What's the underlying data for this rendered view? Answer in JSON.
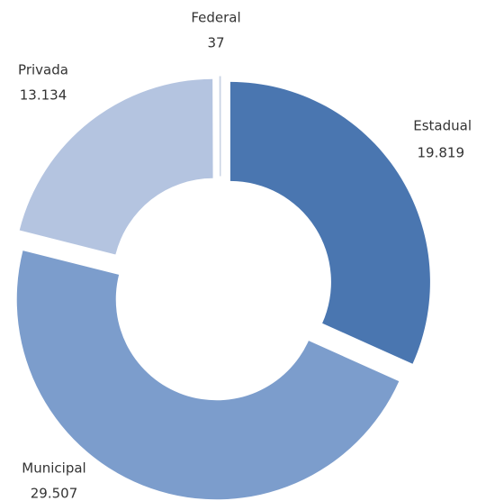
{
  "chart_data": {
    "type": "donut",
    "categories": [
      "Federal",
      "Estadual",
      "Municipal",
      "Privada"
    ],
    "values": [
      37,
      19819,
      29507,
      13134
    ],
    "value_labels": [
      "37",
      "19.819",
      "29.507",
      "13.134"
    ],
    "colors": [
      "#eef2f8",
      "#4a76b0",
      "#7c9dcc",
      "#b4c4e0"
    ]
  }
}
